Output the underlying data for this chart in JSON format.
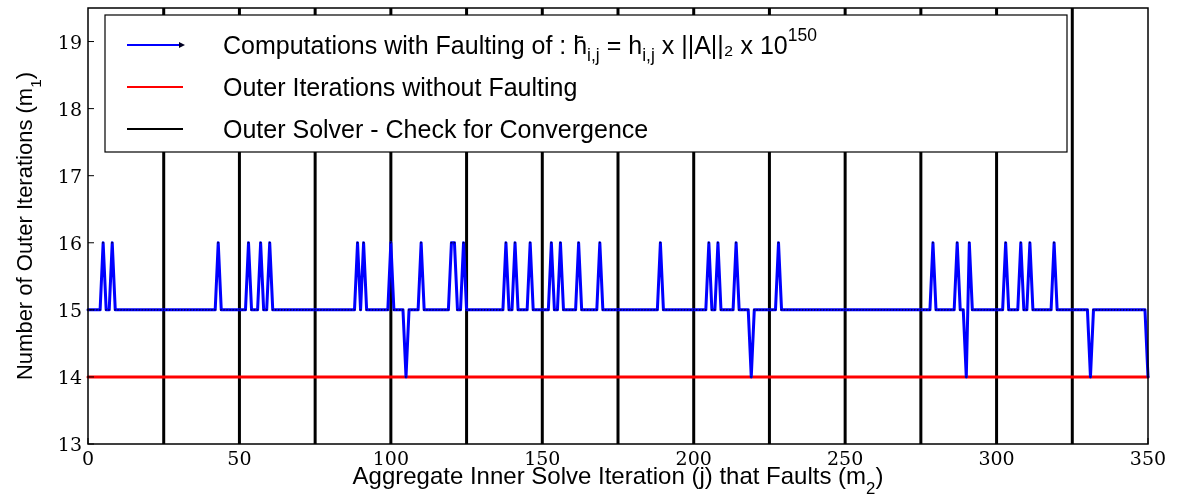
{
  "chart_data": {
    "type": "line",
    "xlabel": "Aggregate Inner Solve Iteration (j) that Faults (m$_{2}$)",
    "ylabel": "Number of Outer Iterations (m$_{1}$)",
    "xlim": [
      0,
      350
    ],
    "xticks": [
      0,
      50,
      100,
      150,
      200,
      250,
      300,
      350
    ],
    "ylim": [
      13,
      19.5
    ],
    "yticks": [
      13,
      14,
      15,
      16,
      17,
      18,
      19
    ],
    "grid": false,
    "legend": "top left",
    "series": [
      {
        "name": "Computations with Faulting of : h̄$_{i,j}$ = h$_{i,j}$ x ||A||₂ x 10$^{150}$",
        "color": "#0000ff",
        "marker": "triangle",
        "x": [
          0,
          1,
          2,
          3,
          4,
          5,
          6,
          7,
          8,
          9,
          10,
          11,
          12,
          13,
          14,
          15,
          16,
          17,
          18,
          19,
          20,
          21,
          22,
          23,
          24,
          25,
          26,
          27,
          28,
          29,
          30,
          31,
          32,
          33,
          34,
          35,
          36,
          37,
          38,
          39,
          40,
          41,
          42,
          43,
          44,
          45,
          46,
          47,
          48,
          49,
          50,
          51,
          52,
          53,
          54,
          55,
          56,
          57,
          58,
          59,
          60,
          61,
          62,
          63,
          64,
          65,
          66,
          67,
          68,
          69,
          70,
          71,
          72,
          73,
          74,
          75,
          76,
          77,
          78,
          79,
          80,
          81,
          82,
          83,
          84,
          85,
          86,
          87,
          88,
          89,
          90,
          91,
          92,
          93,
          94,
          95,
          96,
          97,
          98,
          99,
          100,
          101,
          102,
          103,
          104,
          105,
          106,
          107,
          108,
          109,
          110,
          111,
          112,
          113,
          114,
          115,
          116,
          117,
          118,
          119,
          120,
          121,
          122,
          123,
          124,
          125,
          126,
          127,
          128,
          129,
          130,
          131,
          132,
          133,
          134,
          135,
          136,
          137,
          138,
          139,
          140,
          141,
          142,
          143,
          144,
          145,
          146,
          147,
          148,
          149,
          150,
          151,
          152,
          153,
          154,
          155,
          156,
          157,
          158,
          159,
          160,
          161,
          162,
          163,
          164,
          165,
          166,
          167,
          168,
          169,
          170,
          171,
          172,
          173,
          174,
          175,
          176,
          177,
          178,
          179,
          180,
          181,
          182,
          183,
          184,
          185,
          186,
          187,
          188,
          189,
          190,
          191,
          192,
          193,
          194,
          195,
          196,
          197,
          198,
          199,
          200,
          201,
          202,
          203,
          204,
          205,
          206,
          207,
          208,
          209,
          210,
          211,
          212,
          213,
          214,
          215,
          216,
          217,
          218,
          219,
          220,
          221,
          222,
          223,
          224,
          225,
          226,
          227,
          228,
          229,
          230,
          231,
          232,
          233,
          234,
          235,
          236,
          237,
          238,
          239,
          240,
          241,
          242,
          243,
          244,
          245,
          246,
          247,
          248,
          249,
          250,
          251,
          252,
          253,
          254,
          255,
          256,
          257,
          258,
          259,
          260,
          261,
          262,
          263,
          264,
          265,
          266,
          267,
          268,
          269,
          270,
          271,
          272,
          273,
          274,
          275,
          276,
          277,
          278,
          279,
          280,
          281,
          282,
          283,
          284,
          285,
          286,
          287,
          288,
          289,
          290,
          291,
          292,
          293,
          294,
          295,
          296,
          297,
          298,
          299,
          300,
          301,
          302,
          303,
          304,
          305,
          306,
          307,
          308,
          309,
          310,
          311,
          312,
          313,
          314,
          315,
          316,
          317,
          318,
          319,
          320,
          321,
          322,
          323,
          324,
          325,
          326,
          327,
          328,
          329,
          330,
          331,
          332,
          333,
          334,
          335,
          336,
          337,
          338,
          339,
          340,
          341,
          342,
          343,
          344,
          345,
          346,
          347,
          348,
          349,
          350
        ],
        "values": [
          15,
          15,
          15,
          15,
          15,
          16,
          15,
          15,
          16,
          15,
          15,
          15,
          15,
          15,
          15,
          15,
          15,
          15,
          15,
          15,
          15,
          15,
          15,
          15,
          15,
          15,
          15,
          15,
          15,
          15,
          15,
          15,
          15,
          15,
          15,
          15,
          15,
          15,
          15,
          15,
          15,
          15,
          15,
          16,
          15,
          15,
          15,
          15,
          15,
          15,
          15,
          15,
          15,
          16,
          15,
          15,
          15,
          16,
          15,
          15,
          16,
          15,
          15,
          15,
          15,
          15,
          15,
          15,
          15,
          15,
          15,
          15,
          15,
          15,
          15,
          15,
          15,
          15,
          15,
          15,
          15,
          15,
          15,
          15,
          15,
          15,
          15,
          15,
          15,
          16,
          15,
          16,
          15,
          15,
          15,
          15,
          15,
          15,
          15,
          15,
          16,
          15,
          15,
          15,
          15,
          14,
          15,
          15,
          15,
          15,
          16,
          15,
          15,
          15,
          15,
          15,
          15,
          15,
          15,
          15,
          16,
          16,
          15,
          15,
          16,
          15,
          15,
          15,
          15,
          15,
          15,
          15,
          15,
          15,
          15,
          15,
          15,
          15,
          16,
          15,
          15,
          16,
          15,
          15,
          15,
          15,
          16,
          15,
          15,
          15,
          15,
          15,
          15,
          16,
          15,
          15,
          16,
          15,
          15,
          15,
          15,
          15,
          16,
          15,
          15,
          15,
          15,
          15,
          15,
          16,
          15,
          15,
          15,
          15,
          15,
          15,
          15,
          15,
          15,
          15,
          15,
          15,
          15,
          15,
          15,
          15,
          15,
          15,
          15,
          16,
          15,
          15,
          15,
          15,
          15,
          15,
          15,
          15,
          15,
          15,
          15,
          15,
          15,
          15,
          15,
          16,
          15,
          15,
          16,
          15,
          15,
          15,
          15,
          15,
          16,
          15,
          15,
          15,
          15,
          14,
          15,
          15,
          15,
          15,
          15,
          15,
          15,
          15,
          16,
          15,
          15,
          15,
          15,
          15,
          15,
          15,
          15,
          15,
          15,
          15,
          15,
          15,
          15,
          15,
          15,
          15,
          15,
          15,
          15,
          15,
          15,
          15,
          15,
          15,
          15,
          15,
          15,
          15,
          15,
          15,
          15,
          15,
          15,
          15,
          15,
          15,
          15,
          15,
          15,
          15,
          15,
          15,
          15,
          15,
          15,
          15,
          15,
          15,
          15,
          16,
          15,
          15,
          15,
          15,
          15,
          15,
          15,
          16,
          15,
          15,
          14,
          16,
          15,
          15,
          15,
          15,
          15,
          15,
          15,
          15,
          15,
          15,
          15,
          16,
          15,
          15,
          15,
          15,
          16,
          15,
          15,
          16,
          15,
          15,
          15,
          15,
          15,
          15,
          15,
          16,
          15,
          15,
          15,
          15,
          15,
          15,
          15,
          15,
          15,
          15,
          15,
          14,
          15,
          15,
          15,
          15,
          15,
          15,
          15,
          15,
          15,
          15,
          15,
          15,
          15,
          15,
          15,
          15,
          15,
          15,
          14
        ]
      },
      {
        "name": "Outer Iterations without Faulting",
        "color": "#ff0000",
        "marker": "none",
        "x": [
          0,
          350
        ],
        "values": [
          14,
          14
        ]
      }
    ],
    "ref_lines": [
      {
        "axis": "x",
        "value": 25,
        "label": "Outer Solver - Check for Convergence",
        "color": "#000000"
      },
      {
        "axis": "x",
        "value": 50,
        "color": "#000000"
      },
      {
        "axis": "x",
        "value": 75,
        "color": "#000000"
      },
      {
        "axis": "x",
        "value": 100,
        "color": "#000000"
      },
      {
        "axis": "x",
        "value": 125,
        "color": "#000000"
      },
      {
        "axis": "x",
        "value": 150,
        "color": "#000000"
      },
      {
        "axis": "x",
        "value": 175,
        "color": "#000000"
      },
      {
        "axis": "x",
        "value": 200,
        "color": "#000000"
      },
      {
        "axis": "x",
        "value": 225,
        "color": "#000000"
      },
      {
        "axis": "x",
        "value": 250,
        "color": "#000000"
      },
      {
        "axis": "x",
        "value": 275,
        "color": "#000000"
      },
      {
        "axis": "x",
        "value": 300,
        "color": "#000000"
      },
      {
        "axis": "x",
        "value": 325,
        "color": "#000000"
      }
    ]
  }
}
